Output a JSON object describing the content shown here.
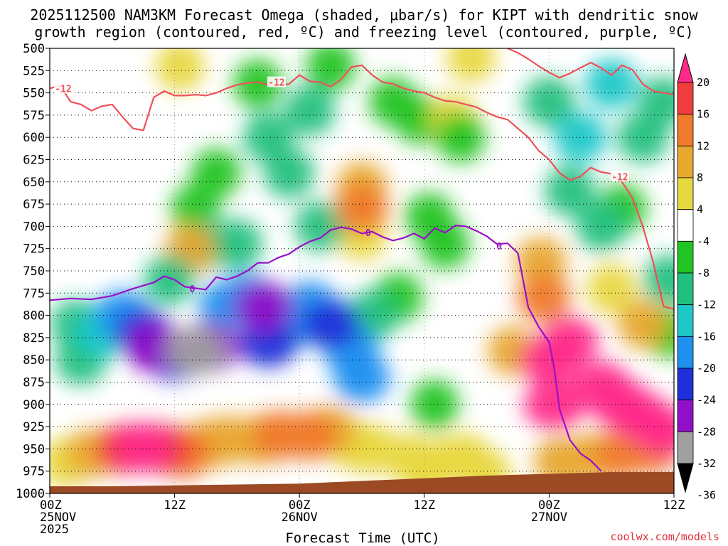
{
  "chart_data": {
    "type": "heatmap",
    "title_line1": "2025112500 NAM3KM Forecast Omega (shaded, μbar/s) for KIPT with dendritic snow",
    "title_line2": "growth region (contoured, red, ºC) and freezing level (contoured, purple, ºC)",
    "xlabel": "Forecast Time (UTC)",
    "credit": "coolwx.com/models",
    "x_hours_range": [
      0,
      60
    ],
    "y_pressure_range": [
      500,
      1000
    ],
    "pressure_levels": [
      "500",
      "525",
      "550",
      "575",
      "600",
      "625",
      "650",
      "675",
      "700",
      "725",
      "750",
      "775",
      "800",
      "825",
      "850",
      "875",
      "900",
      "925",
      "950",
      "975",
      "1000"
    ],
    "x_ticks": [
      {
        "hour": 0,
        "lines": [
          "00Z",
          "25NOV",
          "2025"
        ]
      },
      {
        "hour": 12,
        "lines": [
          "12Z"
        ]
      },
      {
        "hour": 24,
        "lines": [
          "00Z",
          "26NOV"
        ]
      },
      {
        "hour": 36,
        "lines": [
          "12Z"
        ]
      },
      {
        "hour": 48,
        "lines": [
          "00Z",
          "27NOV"
        ]
      },
      {
        "hour": 60,
        "lines": [
          "12Z"
        ]
      }
    ],
    "colorbar": {
      "labels": [
        "20",
        "16",
        "12",
        "8",
        "4",
        "-4",
        "-8",
        "-12",
        "-16",
        "-20",
        "-24",
        "-28",
        "-32",
        "-36"
      ],
      "colors": [
        "#ff2a8a",
        "#f03c3c",
        "#f07a2c",
        "#e8a830",
        "#e8d840",
        "#ffffff",
        "#22c422",
        "#21c07e",
        "#1ec8c8",
        "#1e90f0",
        "#2030d8",
        "#9010c8",
        "#a0a0a0",
        "#000000"
      ]
    },
    "omega_cells": [
      {
        "t": 1.5,
        "p": 965,
        "v": 6
      },
      {
        "t": 4,
        "p": 955,
        "v": 10
      },
      {
        "t": 7,
        "p": 950,
        "v": 16
      },
      {
        "t": 9,
        "p": 948,
        "v": 20
      },
      {
        "t": 11,
        "p": 950,
        "v": 16
      },
      {
        "t": 13,
        "p": 955,
        "v": 12
      },
      {
        "t": 15,
        "p": 945,
        "v": 10
      },
      {
        "t": 17,
        "p": 940,
        "v": 8
      },
      {
        "t": 20,
        "p": 940,
        "v": 10
      },
      {
        "t": 22,
        "p": 935,
        "v": 12
      },
      {
        "t": 25,
        "p": 935,
        "v": 14
      },
      {
        "t": 27,
        "p": 930,
        "v": 10
      },
      {
        "t": 29,
        "p": 945,
        "v": 6
      },
      {
        "t": 31,
        "p": 950,
        "v": 5
      },
      {
        "t": 36,
        "p": 975,
        "v": 5
      },
      {
        "t": 42,
        "p": 978,
        "v": 5
      },
      {
        "t": 3,
        "p": 850,
        "v": -10
      },
      {
        "t": 5,
        "p": 820,
        "v": -14
      },
      {
        "t": 7,
        "p": 800,
        "v": -16
      },
      {
        "t": 9,
        "p": 820,
        "v": -20
      },
      {
        "t": 10,
        "p": 835,
        "v": -24
      },
      {
        "t": 12,
        "p": 845,
        "v": -22
      },
      {
        "t": 14,
        "p": 840,
        "v": -28
      },
      {
        "t": 15.5,
        "p": 835,
        "v": -24
      },
      {
        "t": 17,
        "p": 790,
        "v": -16
      },
      {
        "t": 19,
        "p": 780,
        "v": -18
      },
      {
        "t": 20.5,
        "p": 790,
        "v": -24
      },
      {
        "t": 21,
        "p": 830,
        "v": -22
      },
      {
        "t": 23,
        "p": 810,
        "v": -16
      },
      {
        "t": 25,
        "p": 790,
        "v": -18
      },
      {
        "t": 27,
        "p": 810,
        "v": -22
      },
      {
        "t": 29,
        "p": 840,
        "v": -16
      },
      {
        "t": 30,
        "p": 870,
        "v": -18
      },
      {
        "t": 31,
        "p": 800,
        "v": -10
      },
      {
        "t": 26,
        "p": 700,
        "v": -8
      },
      {
        "t": 23,
        "p": 640,
        "v": -8
      },
      {
        "t": 21,
        "p": 600,
        "v": -8
      },
      {
        "t": 16,
        "p": 640,
        "v": -6
      },
      {
        "t": 14,
        "p": 680,
        "v": -6
      },
      {
        "t": 20,
        "p": 540,
        "v": -6
      },
      {
        "t": 25,
        "p": 570,
        "v": -8
      },
      {
        "t": 27,
        "p": 520,
        "v": -6
      },
      {
        "t": 18,
        "p": 720,
        "v": -8
      },
      {
        "t": 15,
        "p": 720,
        "v": -8
      },
      {
        "t": 30,
        "p": 680,
        "v": 12
      },
      {
        "t": 30,
        "p": 655,
        "v": 8
      },
      {
        "t": 30,
        "p": 710,
        "v": 6
      },
      {
        "t": 13.5,
        "p": 725,
        "v": 8
      },
      {
        "t": 48,
        "p": 850,
        "v": 24
      },
      {
        "t": 48.5,
        "p": 900,
        "v": 28
      },
      {
        "t": 47.5,
        "p": 780,
        "v": 14
      },
      {
        "t": 47.2,
        "p": 740,
        "v": 10
      },
      {
        "t": 50,
        "p": 830,
        "v": 20
      },
      {
        "t": 53,
        "p": 880,
        "v": 24
      },
      {
        "t": 55,
        "p": 900,
        "v": 28
      },
      {
        "t": 57,
        "p": 915,
        "v": 24
      },
      {
        "t": 59,
        "p": 930,
        "v": 20
      },
      {
        "t": 44.5,
        "p": 840,
        "v": 8
      },
      {
        "t": 49,
        "p": 965,
        "v": 10
      },
      {
        "t": 52,
        "p": 960,
        "v": 8
      },
      {
        "t": 55,
        "p": 955,
        "v": 12
      },
      {
        "t": 58,
        "p": 950,
        "v": 14
      },
      {
        "t": 54,
        "p": 770,
        "v": 6
      },
      {
        "t": 57,
        "p": 810,
        "v": 8
      },
      {
        "t": 48,
        "p": 560,
        "v": -10
      },
      {
        "t": 51,
        "p": 600,
        "v": -12
      },
      {
        "t": 54,
        "p": 540,
        "v": -12
      },
      {
        "t": 57,
        "p": 600,
        "v": -10
      },
      {
        "t": 59,
        "p": 560,
        "v": -8
      },
      {
        "t": 50,
        "p": 660,
        "v": -8
      },
      {
        "t": 55,
        "p": 680,
        "v": -6
      },
      {
        "t": 53,
        "p": 700,
        "v": -8
      },
      {
        "t": 59.5,
        "p": 760,
        "v": -8
      },
      {
        "t": 59.5,
        "p": 820,
        "v": -6
      },
      {
        "t": 38,
        "p": 720,
        "v": -6
      },
      {
        "t": 36.5,
        "p": 690,
        "v": -6
      },
      {
        "t": 39.5,
        "p": 600,
        "v": -6
      },
      {
        "t": 35.5,
        "p": 580,
        "v": -4
      },
      {
        "t": 33,
        "p": 560,
        "v": -4
      },
      {
        "t": 33.5,
        "p": 780,
        "v": -6
      },
      {
        "t": 37,
        "p": 900,
        "v": -4
      },
      {
        "t": 34.5,
        "p": 960,
        "v": 4
      },
      {
        "t": 2.5,
        "p": 810,
        "v": -8
      },
      {
        "t": 11.5,
        "p": 760,
        "v": -8
      },
      {
        "t": 12.5,
        "p": 520,
        "v": 5
      },
      {
        "t": 40.5,
        "p": 510,
        "v": 5
      },
      {
        "t": 38.8,
        "p": 580,
        "v": 4
      },
      {
        "t": 40,
        "p": 960,
        "v": 4
      },
      {
        "t": 38,
        "p": 965,
        "v": 4
      }
    ],
    "dendritic_growth_contour_label": "-12",
    "dendritic_growth_12C": [
      [
        0,
        545
      ],
      [
        1,
        542
      ],
      [
        2,
        560
      ],
      [
        3,
        563
      ],
      [
        4,
        570
      ],
      [
        5,
        565
      ],
      [
        6,
        563
      ],
      [
        7,
        577
      ],
      [
        8,
        590
      ],
      [
        9,
        592
      ],
      [
        10,
        555
      ],
      [
        11,
        548
      ],
      [
        12,
        553
      ],
      [
        13,
        553
      ],
      [
        14,
        552
      ],
      [
        15,
        553
      ],
      [
        16,
        550
      ],
      [
        17,
        545
      ],
      [
        18,
        541
      ],
      [
        19,
        539
      ],
      [
        20,
        538
      ],
      [
        21,
        541
      ],
      [
        22,
        542
      ],
      [
        23,
        540
      ],
      [
        24,
        530
      ],
      [
        25,
        537
      ],
      [
        26,
        538
      ],
      [
        27,
        543
      ],
      [
        28,
        535
      ],
      [
        29,
        521
      ],
      [
        30,
        519
      ],
      [
        31,
        530
      ],
      [
        32,
        538
      ],
      [
        33,
        540
      ],
      [
        34,
        545
      ],
      [
        35,
        548
      ],
      [
        36,
        550
      ],
      [
        37,
        555
      ],
      [
        38,
        559
      ],
      [
        39,
        560
      ],
      [
        40,
        563
      ],
      [
        41,
        566
      ],
      [
        42,
        572
      ],
      [
        43,
        577
      ],
      [
        44,
        580
      ],
      [
        45,
        590
      ],
      [
        46,
        600
      ],
      [
        47,
        615
      ],
      [
        48,
        625
      ],
      [
        49,
        640
      ],
      [
        50,
        648
      ],
      [
        51,
        644
      ],
      [
        52,
        634
      ],
      [
        53,
        639
      ],
      [
        54,
        641
      ],
      [
        55,
        650
      ],
      [
        56,
        668
      ],
      [
        57,
        700
      ],
      [
        58,
        740
      ],
      [
        59,
        790
      ],
      [
        60,
        793
      ]
    ],
    "dendritic_growth_upper": [
      [
        44,
        500
      ],
      [
        45,
        505
      ],
      [
        46,
        512
      ],
      [
        47,
        520
      ],
      [
        48,
        527
      ],
      [
        49,
        533
      ],
      [
        50,
        528
      ],
      [
        51,
        522
      ],
      [
        52,
        516
      ],
      [
        53,
        522
      ],
      [
        54,
        530
      ],
      [
        55,
        519
      ],
      [
        56,
        524
      ],
      [
        57,
        540
      ],
      [
        58,
        548
      ],
      [
        59,
        550
      ],
      [
        60,
        552
      ]
    ],
    "freezing_level_label": "0",
    "freezing_level_0C": [
      [
        0,
        783
      ],
      [
        2,
        781
      ],
      [
        4,
        782
      ],
      [
        6,
        778
      ],
      [
        8,
        770
      ],
      [
        10,
        763
      ],
      [
        11,
        756
      ],
      [
        12,
        760
      ],
      [
        13,
        768
      ],
      [
        15,
        771
      ],
      [
        16,
        757
      ],
      [
        17,
        760
      ],
      [
        18,
        756
      ],
      [
        19,
        750
      ],
      [
        20,
        741
      ],
      [
        21,
        741
      ],
      [
        22,
        735
      ],
      [
        23,
        731
      ],
      [
        24,
        723
      ],
      [
        25,
        717
      ],
      [
        26,
        713
      ],
      [
        27,
        704
      ],
      [
        28,
        701
      ],
      [
        29,
        703
      ],
      [
        30,
        708
      ],
      [
        31,
        706
      ],
      [
        32,
        712
      ],
      [
        33,
        716
      ],
      [
        34,
        713
      ],
      [
        35,
        708
      ],
      [
        36,
        714
      ],
      [
        37,
        702
      ],
      [
        38,
        707
      ],
      [
        39,
        699
      ],
      [
        40,
        700
      ],
      [
        41,
        705
      ],
      [
        42,
        711
      ],
      [
        43,
        720
      ],
      [
        44,
        719
      ],
      [
        45,
        730
      ],
      [
        46,
        791
      ],
      [
        47,
        813
      ],
      [
        48,
        830
      ],
      [
        48.5,
        860
      ],
      [
        49,
        905
      ],
      [
        50,
        940
      ],
      [
        51,
        955
      ],
      [
        52,
        963
      ],
      [
        53,
        975
      ]
    ],
    "terrain_surface": [
      [
        0,
        992
      ],
      [
        6,
        992
      ],
      [
        12,
        991
      ],
      [
        18,
        990
      ],
      [
        24,
        989
      ],
      [
        30,
        986
      ],
      [
        36,
        983
      ],
      [
        42,
        980
      ],
      [
        48,
        978
      ],
      [
        54,
        976
      ],
      [
        60,
        976
      ]
    ]
  }
}
